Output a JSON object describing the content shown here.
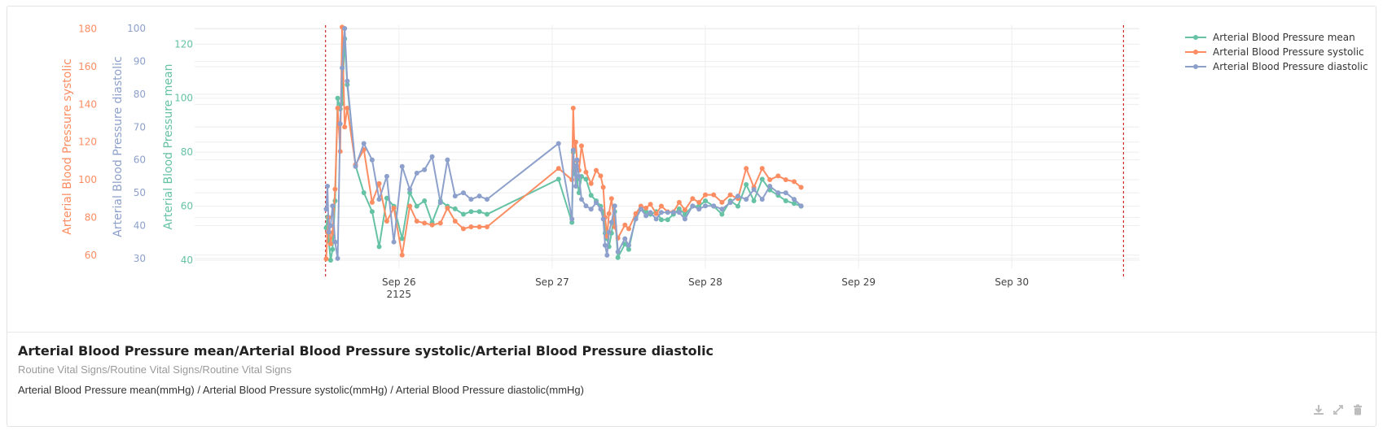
{
  "card": {
    "title": "Arterial Blood Pressure mean/Arterial Blood Pressure systolic/Arterial Blood Pressure diastolic",
    "subtitle": "Routine Vital Signs/Routine Vital Signs/Routine Vital Signs",
    "units": "Arterial Blood Pressure mean(mmHg) / Arterial Blood Pressure systolic(mmHg) / Arterial Blood Pressure diastolic(mmHg)"
  },
  "tools": {
    "download": "download-icon",
    "expand": "expand-icon",
    "delete": "trash-icon"
  },
  "chart_data": {
    "type": "line",
    "x_axis": {
      "range_hours": [
        -8,
        140
      ],
      "ticks": [
        {
          "h": 24,
          "label": "Sep 26",
          "sub": "2125"
        },
        {
          "h": 48,
          "label": "Sep 27",
          "sub": ""
        },
        {
          "h": 72,
          "label": "Sep 28",
          "sub": ""
        },
        {
          "h": 96,
          "label": "Sep 29",
          "sub": ""
        },
        {
          "h": 120,
          "label": "Sep 30",
          "sub": ""
        }
      ],
      "markers_hours": [
        12.5,
        137.5
      ]
    },
    "y_axes": [
      {
        "name": "Arterial Blood Pressure systolic",
        "color": "#fc8d62",
        "range": [
          53,
          182
        ],
        "ticks": [
          60,
          80,
          100,
          120,
          140,
          160,
          180
        ]
      },
      {
        "name": "Arterial Blood Pressure diastolic",
        "color": "#8da0cb",
        "range": [
          27,
          101
        ],
        "ticks": [
          30,
          40,
          50,
          60,
          70,
          80,
          90,
          100
        ]
      },
      {
        "name": "Arterial Blood Pressure mean",
        "color": "#66c2a5",
        "range": [
          37,
          127
        ],
        "ticks": [
          40,
          60,
          80,
          100,
          120
        ]
      }
    ],
    "legend_position": "top-right",
    "series": [
      {
        "name": "Arterial Blood Pressure mean",
        "color": "#66c2a5",
        "axis": 2,
        "x": [
          12.6,
          12.8,
          13.0,
          13.3,
          13.6,
          14.0,
          14.4,
          14.8,
          15.1,
          15.5,
          15.9,
          17.2,
          18.5,
          19.8,
          20.9,
          22.1,
          23.2,
          24.5,
          25.7,
          26.8,
          28.0,
          29.2,
          30.5,
          31.6,
          32.8,
          34.1,
          35.3,
          36.6,
          37.8,
          49.0,
          51.1,
          51.3,
          51.5,
          51.7,
          51.9,
          52.2,
          52.6,
          53.3,
          54.1,
          54.9,
          55.6,
          56.0,
          56.3,
          56.6,
          56.9,
          57.3,
          57.8,
          58.3,
          59.4,
          60.0,
          61.1,
          61.9,
          62.7,
          63.4,
          64.3,
          65.1,
          66.1,
          67.0,
          67.9,
          68.8,
          70.0,
          71.0,
          72.0,
          73.3,
          74.6,
          75.9,
          77.1,
          78.4,
          79.6,
          80.9,
          82.1,
          83.4,
          84.6,
          85.9,
          87.0
        ],
        "y": [
          52,
          56,
          47,
          40,
          44,
          62,
          100,
          96,
          98,
          122,
          105,
          75,
          65,
          58,
          45,
          63,
          60,
          48,
          65,
          60,
          62,
          54,
          62,
          60,
          59,
          57,
          58,
          58,
          57,
          70,
          54,
          80,
          72,
          75,
          70,
          65,
          71,
          70,
          64,
          62,
          60,
          58,
          50,
          48,
          45,
          50,
          58,
          41,
          46,
          44,
          56,
          59,
          58,
          57,
          58,
          55,
          55,
          57,
          59,
          57,
          60,
          60,
          62,
          60,
          57,
          62,
          60,
          68,
          62,
          70,
          66,
          64,
          62,
          61,
          60
        ]
      },
      {
        "name": "Arterial Blood Pressure systolic",
        "color": "#fc8d62",
        "axis": 0,
        "x": [
          12.6,
          12.8,
          13.0,
          13.3,
          13.6,
          14.0,
          14.4,
          14.8,
          15.1,
          15.5,
          15.9,
          17.2,
          18.5,
          19.8,
          20.9,
          22.1,
          23.2,
          24.5,
          25.7,
          26.8,
          28.0,
          29.2,
          30.5,
          31.6,
          32.8,
          34.1,
          35.3,
          36.6,
          37.8,
          49.0,
          51.1,
          51.3,
          51.5,
          51.7,
          51.9,
          52.2,
          52.6,
          53.3,
          54.1,
          54.9,
          55.6,
          56.0,
          56.3,
          56.6,
          56.9,
          57.3,
          57.8,
          58.3,
          59.4,
          60.0,
          61.1,
          61.9,
          62.7,
          63.4,
          64.3,
          65.1,
          66.1,
          67.0,
          67.9,
          68.8,
          70.0,
          71.0,
          72.0,
          73.3,
          74.6,
          75.9,
          77.1,
          78.4,
          79.6,
          80.9,
          82.1,
          83.4,
          84.6,
          85.9,
          87.0
        ],
        "y": [
          58,
          72,
          80,
          66,
          72,
          95,
          138,
          115,
          181,
          128,
          138,
          108,
          116,
          88,
          98,
          78,
          85,
          60,
          86,
          78,
          77,
          76,
          77,
          85,
          78,
          74,
          75,
          75,
          75,
          106,
          100,
          138,
          116,
          120,
          110,
          105,
          118,
          104,
          98,
          105,
          102,
          96,
          80,
          70,
          82,
          90,
          75,
          69,
          76,
          74,
          82,
          86,
          85,
          87,
          82,
          86,
          83,
          83,
          88,
          84,
          90,
          88,
          92,
          92,
          88,
          92,
          90,
          106,
          96,
          106,
          100,
          102,
          100,
          99,
          96
        ]
      },
      {
        "name": "Arterial Blood Pressure diastolic",
        "color": "#8da0cb",
        "axis": 1,
        "x": [
          12.6,
          12.8,
          13.0,
          13.3,
          13.6,
          14.0,
          14.4,
          14.8,
          15.1,
          15.5,
          15.9,
          17.2,
          18.5,
          19.8,
          20.9,
          22.1,
          23.2,
          24.5,
          25.7,
          26.8,
          28.0,
          29.2,
          30.5,
          31.6,
          32.8,
          34.1,
          35.3,
          36.6,
          37.8,
          49.0,
          51.1,
          51.3,
          51.5,
          51.7,
          51.9,
          52.2,
          52.6,
          53.3,
          54.1,
          54.9,
          55.6,
          56.0,
          56.3,
          56.6,
          56.9,
          57.3,
          57.8,
          58.3,
          59.4,
          60.0,
          61.1,
          61.9,
          62.7,
          63.4,
          64.3,
          65.1,
          66.1,
          67.0,
          67.9,
          68.8,
          70.0,
          71.0,
          72.0,
          73.3,
          74.6,
          75.9,
          77.1,
          78.4,
          79.6,
          80.9,
          82.1,
          83.4,
          84.6,
          85.9,
          87.0
        ],
        "y": [
          45,
          52,
          38,
          40,
          46,
          35,
          30,
          71,
          88,
          100,
          84,
          58,
          65,
          60,
          48,
          55,
          35,
          58,
          51,
          56,
          57,
          61,
          47,
          60,
          49,
          50,
          48,
          49,
          48,
          65,
          42,
          63,
          58,
          52,
          60,
          55,
          48,
          46,
          45,
          47,
          45,
          42,
          34,
          31,
          38,
          41,
          46,
          32,
          36,
          34,
          42,
          45,
          43,
          44,
          42,
          44,
          44,
          44,
          44,
          42,
          46,
          45,
          46,
          46,
          45,
          47,
          49,
          48,
          51,
          48,
          52,
          50,
          50,
          48,
          46
        ]
      }
    ]
  }
}
